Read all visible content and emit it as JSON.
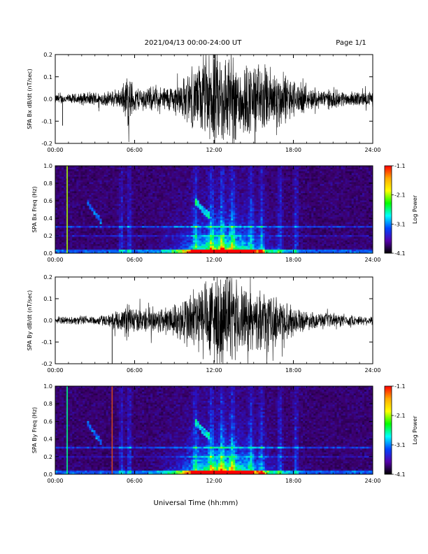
{
  "header": {
    "title": "2021/04/13  00:00-24:00 UT",
    "page": "Page 1/1"
  },
  "footer": {
    "xlabel": "Universal Time (hh:mm)"
  },
  "colorbar": {
    "label": "Log Power",
    "ticks": [
      "-1.1",
      "-2.1",
      "-3.1",
      "-4.1"
    ],
    "stops": [
      "#ff0000",
      "#ffaa00",
      "#ffff00",
      "#00ff00",
      "#00ffff",
      "#0044ff",
      "#5500aa",
      "#000000"
    ]
  },
  "chart_data": [
    {
      "type": "line",
      "ylabel": "SPA Bx dB/dt (nT/sec)",
      "xlim": [
        0,
        24
      ],
      "ylim": [
        -0.2,
        0.2
      ],
      "xticks": [
        "00:00",
        "06:00",
        "12:00",
        "18:00",
        "24:00"
      ],
      "yticks": [
        "0.2",
        "0.1",
        "0.0",
        "-0.1",
        "-0.2"
      ],
      "envelope": [
        {
          "hour": 0,
          "amp": 0.02
        },
        {
          "hour": 1,
          "amp": 0.02
        },
        {
          "hour": 2,
          "amp": 0.025
        },
        {
          "hour": 3,
          "amp": 0.03
        },
        {
          "hour": 4,
          "amp": 0.03
        },
        {
          "hour": 5,
          "amp": 0.04
        },
        {
          "hour": 5.5,
          "amp": 0.12
        },
        {
          "hour": 6,
          "amp": 0.05
        },
        {
          "hour": 7,
          "amp": 0.05
        },
        {
          "hour": 8,
          "amp": 0.05
        },
        {
          "hour": 9,
          "amp": 0.06
        },
        {
          "hour": 10,
          "amp": 0.1
        },
        {
          "hour": 11,
          "amp": 0.15
        },
        {
          "hour": 12,
          "amp": 0.2
        },
        {
          "hour": 13,
          "amp": 0.2
        },
        {
          "hour": 14,
          "amp": 0.16
        },
        {
          "hour": 15,
          "amp": 0.15
        },
        {
          "hour": 16,
          "amp": 0.14
        },
        {
          "hour": 17,
          "amp": 0.12
        },
        {
          "hour": 18,
          "amp": 0.08
        },
        {
          "hour": 19,
          "amp": 0.05
        },
        {
          "hour": 20,
          "amp": 0.04
        },
        {
          "hour": 21,
          "amp": 0.04
        },
        {
          "hour": 22,
          "amp": 0.03
        },
        {
          "hour": 23,
          "amp": 0.03
        },
        {
          "hour": 24,
          "amp": 0.03
        }
      ]
    },
    {
      "type": "heatmap",
      "ylabel": "SPA Bx Freq (Hz)",
      "xlim": [
        0,
        24
      ],
      "ylim": [
        0,
        1.0
      ],
      "zlim": [
        -4.1,
        -1.1
      ],
      "xticks": [
        "00:00",
        "06:00",
        "12:00",
        "18:00",
        "24:00"
      ],
      "yticks": [
        "1.0",
        "0.8",
        "0.6",
        "0.4",
        "0.2",
        "0.0"
      ],
      "vertical_lines": [
        {
          "hour": 0.9,
          "color": "#aaff00"
        }
      ]
    },
    {
      "type": "line",
      "ylabel": "SPA By dB/dt (nT/sec)",
      "xlim": [
        0,
        24
      ],
      "ylim": [
        -0.2,
        0.2
      ],
      "xticks": [
        "00:00",
        "06:00",
        "12:00",
        "18:00",
        "24:00"
      ],
      "yticks": [
        "0.2",
        "0.1",
        "0.0",
        "-0.1",
        "-0.2"
      ],
      "envelope": [
        {
          "hour": 0,
          "amp": 0.015
        },
        {
          "hour": 1,
          "amp": 0.015
        },
        {
          "hour": 2,
          "amp": 0.02
        },
        {
          "hour": 3,
          "amp": 0.02
        },
        {
          "hour": 4,
          "amp": 0.025
        },
        {
          "hour": 5,
          "amp": 0.04
        },
        {
          "hour": 5.5,
          "amp": 0.09
        },
        {
          "hour": 6,
          "amp": 0.05
        },
        {
          "hour": 7,
          "amp": 0.05
        },
        {
          "hour": 8,
          "amp": 0.06
        },
        {
          "hour": 9,
          "amp": 0.07
        },
        {
          "hour": 10,
          "amp": 0.12
        },
        {
          "hour": 11,
          "amp": 0.16
        },
        {
          "hour": 12,
          "amp": 0.2
        },
        {
          "hour": 13,
          "amp": 0.2
        },
        {
          "hour": 14,
          "amp": 0.15
        },
        {
          "hour": 15,
          "amp": 0.12
        },
        {
          "hour": 16,
          "amp": 0.12
        },
        {
          "hour": 17,
          "amp": 0.1
        },
        {
          "hour": 18,
          "amp": 0.06
        },
        {
          "hour": 19,
          "amp": 0.04
        },
        {
          "hour": 20,
          "amp": 0.03
        },
        {
          "hour": 21,
          "amp": 0.03
        },
        {
          "hour": 22,
          "amp": 0.025
        },
        {
          "hour": 23,
          "amp": 0.02
        },
        {
          "hour": 24,
          "amp": 0.02
        }
      ]
    },
    {
      "type": "heatmap",
      "ylabel": "SPA By Freq (Hz)",
      "xlim": [
        0,
        24
      ],
      "ylim": [
        0,
        1.0
      ],
      "zlim": [
        -4.1,
        -1.1
      ],
      "xticks": [
        "00:00",
        "06:00",
        "12:00",
        "18:00",
        "24:00"
      ],
      "yticks": [
        "1.0",
        "0.8",
        "0.6",
        "0.4",
        "0.2",
        "0.0"
      ],
      "vertical_lines": [
        {
          "hour": 0.9,
          "color": "#00ff88"
        },
        {
          "hour": 4.3,
          "color": "#cc4422"
        }
      ]
    }
  ]
}
